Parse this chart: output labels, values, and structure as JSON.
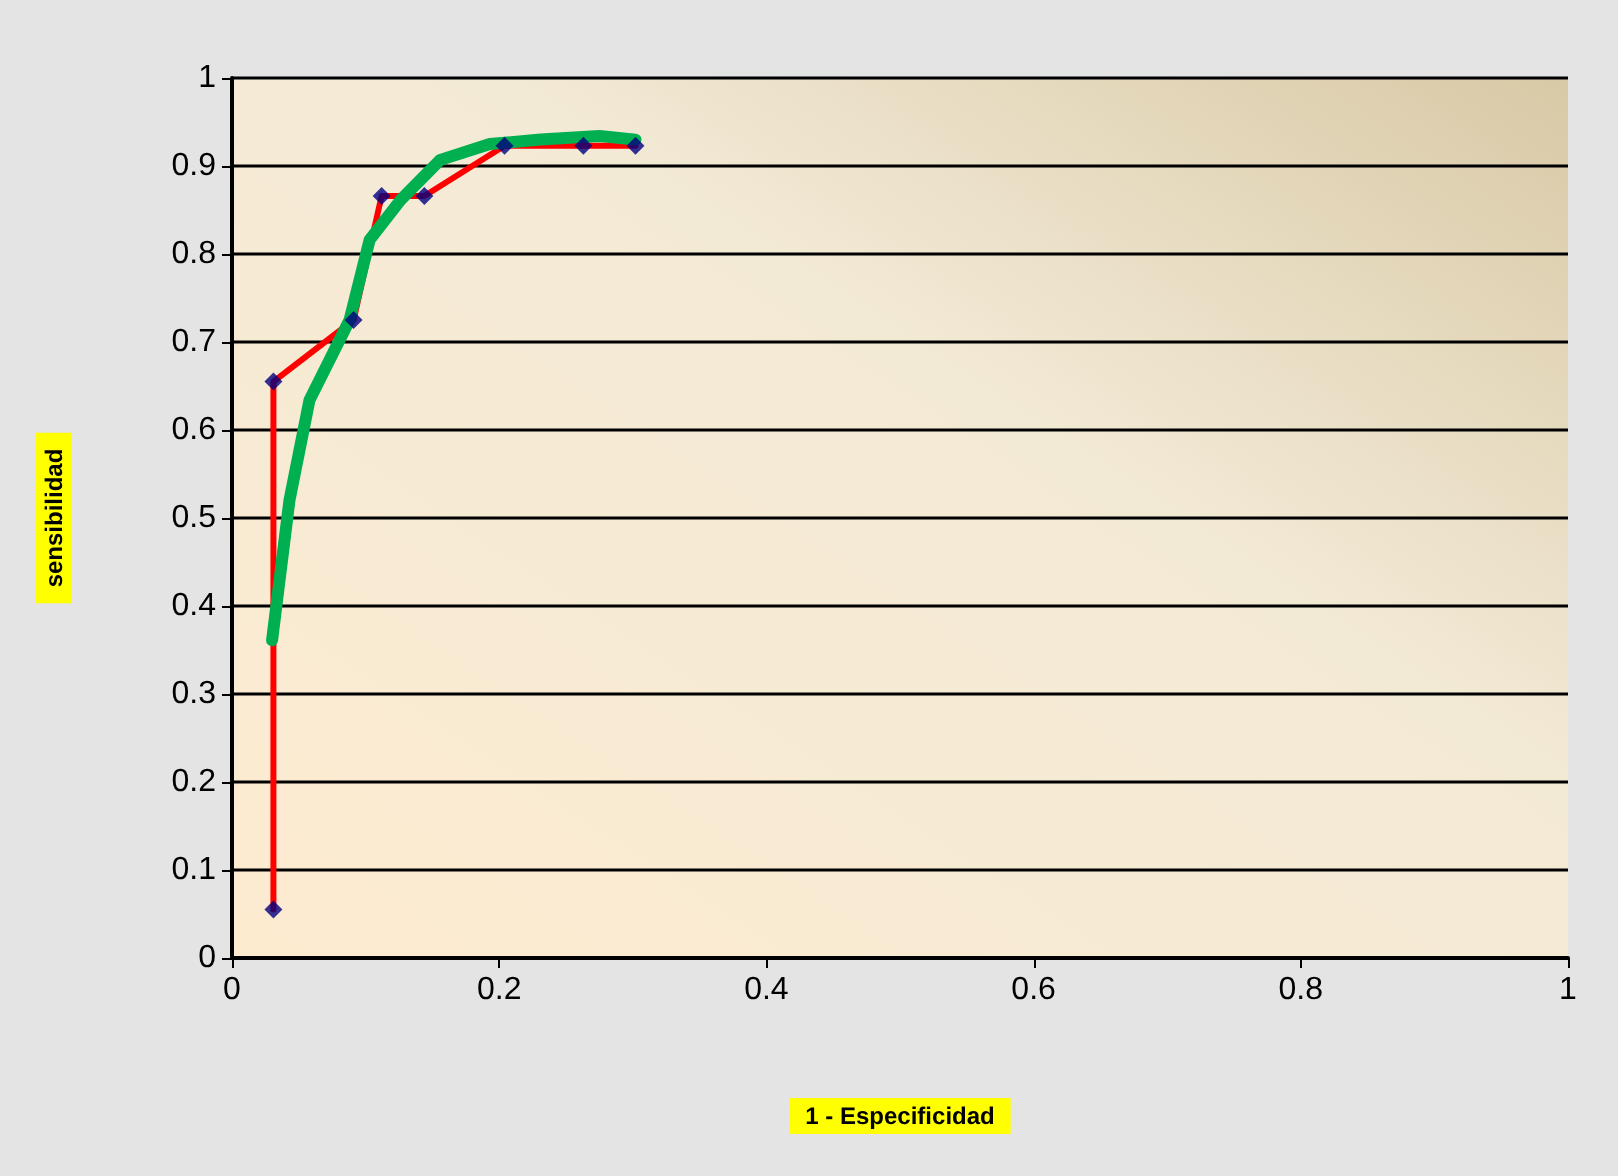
{
  "chart_data": {
    "type": "line",
    "xlabel": "1 - Especificidad",
    "ylabel": "sensibilidad",
    "xlim": [
      0,
      1
    ],
    "xticks": [
      0,
      0.2,
      0.4,
      0.6,
      0.8,
      1
    ],
    "ylim": [
      0,
      1
    ],
    "yticks": [
      0,
      0.1,
      0.2,
      0.3,
      0.4,
      0.5,
      0.6,
      0.7,
      0.8,
      0.9,
      1
    ],
    "grid": "y",
    "series": [
      {
        "color": "#ff0000",
        "marker": "none",
        "x": [
          0.031,
          0.031,
          0.091,
          0.112,
          0.144,
          0.204,
          0.263,
          0.302
        ],
        "values": [
          0.055,
          0.655,
          0.725,
          0.866,
          0.866,
          0.923,
          0.923,
          0.923
        ]
      },
      {
        "color": "#00b050",
        "marker": "none",
        "x": [
          0.03,
          0.043,
          0.058,
          0.088,
          0.103,
          0.126,
          0.156,
          0.193,
          0.231,
          0.275,
          0.302
        ],
        "values": [
          0.361,
          0.52,
          0.634,
          0.725,
          0.816,
          0.861,
          0.907,
          0.925,
          0.93,
          0.934,
          0.93
        ]
      },
      {
        "type": "scatter",
        "color": "#000080",
        "marker": "diamond",
        "x": [
          0.031,
          0.031,
          0.091,
          0.112,
          0.144,
          0.204,
          0.263,
          0.302
        ],
        "values": [
          0.055,
          0.655,
          0.725,
          0.866,
          0.866,
          0.923,
          0.923,
          0.923
        ]
      }
    ]
  }
}
